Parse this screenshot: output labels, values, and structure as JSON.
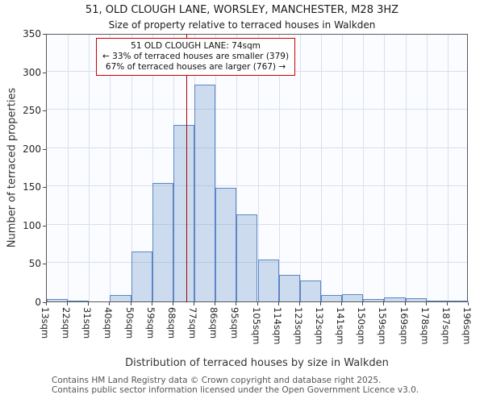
{
  "title": "51, OLD CLOUGH LANE, WORSLEY, MANCHESTER, M28 3HZ",
  "subtitle": "Size of property relative to terraced houses in Walkden",
  "annotation": {
    "line1": "51 OLD CLOUGH LANE: 74sqm",
    "line2": "← 33% of terraced houses are smaller (379)",
    "line3": "67% of terraced houses are larger (767) →"
  },
  "chart_data": {
    "type": "bar",
    "title": "51, OLD CLOUGH LANE, WORSLEY, MANCHESTER, M28 3HZ",
    "subtitle": "Size of property relative to terraced houses in Walkden",
    "xlabel": "Distribution of terraced houses by size in Walkden",
    "ylabel": "Number of terraced properties",
    "ylim": [
      0,
      350
    ],
    "yticks": [
      0,
      50,
      100,
      150,
      200,
      250,
      300,
      350
    ],
    "x_min": 13,
    "x_max": 196,
    "bin_edges": [
      13,
      22,
      31,
      40,
      50,
      59,
      68,
      77,
      86,
      95,
      105,
      114,
      123,
      132,
      141,
      150,
      159,
      169,
      178,
      187,
      196
    ],
    "bin_labels": [
      "13sqm",
      "22sqm",
      "31sqm",
      "40sqm",
      "50sqm",
      "59sqm",
      "68sqm",
      "77sqm",
      "86sqm",
      "95sqm",
      "105sqm",
      "114sqm",
      "123sqm",
      "132sqm",
      "141sqm",
      "150sqm",
      "159sqm",
      "169sqm",
      "178sqm",
      "187sqm",
      "196sqm"
    ],
    "values": [
      3,
      1,
      0,
      8,
      65,
      155,
      230,
      283,
      148,
      114,
      55,
      35,
      27,
      8,
      9,
      3,
      5,
      4,
      1,
      1
    ],
    "marker": {
      "sqm": 74,
      "label": "51 OLD CLOUGH LANE: 74sqm",
      "color": "#a80000"
    },
    "grid": true,
    "bar_fill": "#cfdcf0",
    "bar_border": "#5b87c5"
  },
  "footer": {
    "line1": "Contains HM Land Registry data © Crown copyright and database right 2025.",
    "line2": "Contains public sector information licensed under the Open Government Licence v3.0."
  }
}
